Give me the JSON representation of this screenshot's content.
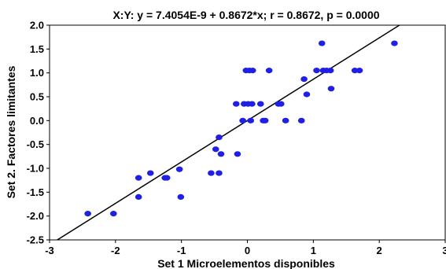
{
  "chart_data": {
    "type": "scatter",
    "title": "X:Y:   y = 7.4054E-9 + 0.8672*x; r = 0.8672, p = 0.0000",
    "xlabel": "Set 1 Microelementos disponibles",
    "ylabel": "Set 2. Factores limitantes",
    "xlim": [
      -3,
      3
    ],
    "ylim": [
      -2.5,
      2.0
    ],
    "x_ticks": [
      "-3",
      "-2",
      "-1",
      "0",
      "1",
      "2",
      "3"
    ],
    "y_ticks": [
      "2.0",
      "1.5",
      "1.0",
      "0.5",
      "0.0",
      "-0.5",
      "-1.0",
      "-1.5",
      "-2.0",
      "-2.5"
    ],
    "x_tick_values": [
      -3,
      -2,
      -1,
      0,
      1,
      2,
      3
    ],
    "y_tick_values": [
      2.0,
      1.5,
      1.0,
      0.5,
      0.0,
      -0.5,
      -1.0,
      -1.5,
      -2.0,
      -2.5
    ],
    "grid": false,
    "point_color": "#1f1fe6",
    "line_color": "#000000",
    "regression": {
      "intercept": 7.4054e-09,
      "slope": 0.8672
    },
    "points": [
      {
        "x": -2.42,
        "y": -1.95
      },
      {
        "x": -2.03,
        "y": -1.95
      },
      {
        "x": -1.65,
        "y": -1.6
      },
      {
        "x": -1.65,
        "y": -1.2
      },
      {
        "x": -1.47,
        "y": -1.1
      },
      {
        "x": -1.25,
        "y": -1.2
      },
      {
        "x": -1.22,
        "y": -1.2
      },
      {
        "x": -1.03,
        "y": -1.02
      },
      {
        "x": -1.01,
        "y": -1.6
      },
      {
        "x": -0.55,
        "y": -1.1
      },
      {
        "x": -0.43,
        "y": -1.1
      },
      {
        "x": -0.48,
        "y": -0.6
      },
      {
        "x": -0.43,
        "y": -0.35
      },
      {
        "x": -0.4,
        "y": -0.7
      },
      {
        "x": -0.15,
        "y": -0.7
      },
      {
        "x": -0.17,
        "y": 0.35
      },
      {
        "x": -0.07,
        "y": 0.0
      },
      {
        "x": -0.05,
        "y": 0.35
      },
      {
        "x": 0.01,
        "y": 0.35
      },
      {
        "x": 0.07,
        "y": 0.35
      },
      {
        "x": -0.02,
        "y": 1.05
      },
      {
        "x": 0.03,
        "y": 1.05
      },
      {
        "x": 0.08,
        "y": 1.05
      },
      {
        "x": 0.05,
        "y": 0.0
      },
      {
        "x": 0.2,
        "y": 0.35
      },
      {
        "x": 0.24,
        "y": 0.0
      },
      {
        "x": 0.27,
        "y": 0.0
      },
      {
        "x": 0.33,
        "y": 1.05
      },
      {
        "x": 0.47,
        "y": 0.35
      },
      {
        "x": 0.51,
        "y": 0.35
      },
      {
        "x": 0.58,
        "y": 0.0
      },
      {
        "x": 0.82,
        "y": 0.0
      },
      {
        "x": 0.86,
        "y": 0.87
      },
      {
        "x": 0.9,
        "y": 0.55
      },
      {
        "x": 1.05,
        "y": 1.05
      },
      {
        "x": 1.13,
        "y": 1.62
      },
      {
        "x": 1.15,
        "y": 1.05
      },
      {
        "x": 1.2,
        "y": 1.05
      },
      {
        "x": 1.26,
        "y": 1.05
      },
      {
        "x": 1.27,
        "y": 0.67
      },
      {
        "x": 1.63,
        "y": 1.05
      },
      {
        "x": 1.7,
        "y": 1.05
      },
      {
        "x": 2.23,
        "y": 1.62
      }
    ]
  }
}
